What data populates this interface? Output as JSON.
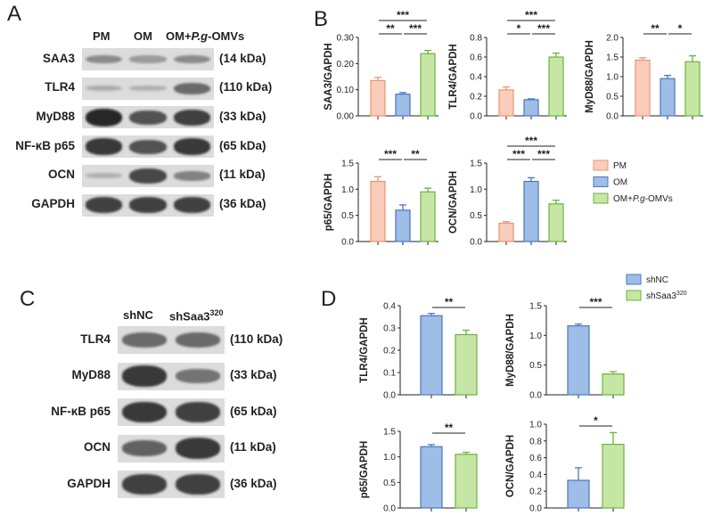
{
  "panels": {
    "a": "A",
    "b": "B",
    "c": "C",
    "d": "D"
  },
  "blot_a": {
    "lanes": [
      {
        "text": "PM"
      },
      {
        "text": "OM"
      },
      {
        "text": "OM+",
        "em": "P.g",
        "tail": "-OMVs"
      }
    ],
    "rows": [
      {
        "label": "SAA3",
        "kda": "(14 kDa)",
        "intensity": [
          0.35,
          0.25,
          0.35
        ]
      },
      {
        "label": "TLR4",
        "kda": "(110 kDa)",
        "intensity": [
          0.15,
          0.12,
          0.55
        ]
      },
      {
        "label": "MyD88",
        "kda": "(33 kDa)",
        "intensity": [
          0.95,
          0.7,
          0.8
        ]
      },
      {
        "label": "NF-κB p65",
        "kda": "(65 kDa)",
        "intensity": [
          0.85,
          0.7,
          0.85
        ]
      },
      {
        "label": "OCN",
        "kda": "(11 kDa)",
        "intensity": [
          0.12,
          0.75,
          0.4
        ]
      },
      {
        "label": "GAPDH",
        "kda": "(36 kDa)",
        "intensity": [
          0.8,
          0.8,
          0.8
        ]
      }
    ]
  },
  "blot_c": {
    "lanes": [
      {
        "text": "shNC"
      },
      {
        "text": "shSaa3",
        "sup": "320"
      }
    ],
    "rows": [
      {
        "label": "TLR4",
        "kda": "(110 kDa)",
        "intensity": [
          0.55,
          0.55
        ]
      },
      {
        "label": "MyD88",
        "kda": "(33 kDa)",
        "intensity": [
          0.85,
          0.5
        ]
      },
      {
        "label": "NF-κB p65",
        "kda": "(65 kDa)",
        "intensity": [
          0.85,
          0.8
        ]
      },
      {
        "label": "OCN",
        "kda": "(11 kDa)",
        "intensity": [
          0.6,
          0.85
        ]
      },
      {
        "label": "GAPDH",
        "kda": "(36 kDa)",
        "intensity": [
          0.8,
          0.8
        ]
      }
    ]
  },
  "legend_b": [
    {
      "text": "PM",
      "color": "#f9cdb9",
      "edge": "#e99572"
    },
    {
      "text": "OM",
      "color": "#9ebde7",
      "edge": "#4a77c2"
    },
    {
      "text": "OM+",
      "em": "P.g",
      "tail": "-OMVs",
      "color": "#c6e6a6",
      "edge": "#6bb33e"
    }
  ],
  "legend_d": [
    {
      "text": "shNC",
      "sup": "",
      "color": "#9ebde7",
      "edge": "#4a77c2"
    },
    {
      "text": "shSaa3",
      "sup": "320",
      "color": "#c6e6a6",
      "edge": "#6bb33e"
    }
  ],
  "chart_data": [
    {
      "type": "bar",
      "panel": "B",
      "ylabel": "SAA3/GAPDH",
      "categories": [
        "PM",
        "OM",
        "OM+P.g-OMVs"
      ],
      "values": [
        0.135,
        0.083,
        0.238
      ],
      "errors": [
        0.012,
        0.006,
        0.012
      ],
      "ylim": [
        0,
        0.3
      ],
      "yticks": [
        "0.00",
        "0.10",
        "0.20",
        "0.30"
      ],
      "ytick_values": [
        0,
        0.1,
        0.2,
        0.3
      ],
      "significance": [
        {
          "from": 0,
          "to": 1,
          "label": "**"
        },
        {
          "from": 1,
          "to": 2,
          "label": "***"
        },
        {
          "from": 0,
          "to": 2,
          "label": "***"
        }
      ]
    },
    {
      "type": "bar",
      "panel": "B",
      "ylabel": "TLR4/GAPDH",
      "categories": [
        "PM",
        "OM",
        "OM+P.g-OMVs"
      ],
      "values": [
        0.265,
        0.165,
        0.6
      ],
      "errors": [
        0.03,
        0.008,
        0.04
      ],
      "ylim": [
        0,
        0.8
      ],
      "yticks": [
        "0.0",
        "0.2",
        "0.4",
        "0.6",
        "0.8"
      ],
      "ytick_values": [
        0,
        0.2,
        0.4,
        0.6,
        0.8
      ],
      "significance": [
        {
          "from": 0,
          "to": 1,
          "label": "*"
        },
        {
          "from": 1,
          "to": 2,
          "label": "***"
        },
        {
          "from": 0,
          "to": 2,
          "label": "***"
        }
      ]
    },
    {
      "type": "bar",
      "panel": "B",
      "ylabel": "MyD88/GAPDH",
      "categories": [
        "PM",
        "OM",
        "OM+P.g-OMVs"
      ],
      "values": [
        1.42,
        0.95,
        1.38
      ],
      "errors": [
        0.06,
        0.08,
        0.15
      ],
      "ylim": [
        0,
        2.0
      ],
      "yticks": [
        "0.0",
        "0.5",
        "1.0",
        "1.5",
        "2.0"
      ],
      "ytick_values": [
        0,
        0.5,
        1.0,
        1.5,
        2.0
      ],
      "significance": [
        {
          "from": 0,
          "to": 1,
          "label": "**"
        },
        {
          "from": 1,
          "to": 2,
          "label": "*"
        }
      ]
    },
    {
      "type": "bar",
      "panel": "B",
      "ylabel": "p65/GAPDH",
      "categories": [
        "PM",
        "OM",
        "OM+P.g-OMVs"
      ],
      "values": [
        1.15,
        0.6,
        0.95
      ],
      "errors": [
        0.09,
        0.1,
        0.07
      ],
      "ylim": [
        0,
        1.5
      ],
      "yticks": [
        "0.0",
        "0.5",
        "1.0",
        "1.5"
      ],
      "ytick_values": [
        0,
        0.5,
        1.0,
        1.5
      ],
      "significance": [
        {
          "from": 0,
          "to": 1,
          "label": "***"
        },
        {
          "from": 1,
          "to": 2,
          "label": "**"
        }
      ]
    },
    {
      "type": "bar",
      "panel": "B",
      "ylabel": "OCN/GAPDH",
      "categories": [
        "PM",
        "OM",
        "OM+P.g-OMVs"
      ],
      "values": [
        0.35,
        1.15,
        0.72
      ],
      "errors": [
        0.03,
        0.07,
        0.07
      ],
      "ylim": [
        0,
        1.5
      ],
      "yticks": [
        "0.0",
        "0.5",
        "1.0",
        "1.5"
      ],
      "ytick_values": [
        0,
        0.5,
        1.0,
        1.5
      ],
      "significance": [
        {
          "from": 0,
          "to": 1,
          "label": "***"
        },
        {
          "from": 1,
          "to": 2,
          "label": "***"
        },
        {
          "from": 0,
          "to": 2,
          "label": "***"
        }
      ]
    },
    {
      "type": "bar",
      "panel": "D",
      "ylabel": "TLR4/GAPDH",
      "categories": [
        "shNC",
        "shSaa3 320"
      ],
      "values": [
        0.355,
        0.27
      ],
      "errors": [
        0.01,
        0.02
      ],
      "ylim": [
        0,
        0.4
      ],
      "yticks": [
        "0.0",
        "0.1",
        "0.2",
        "0.3",
        "0.4"
      ],
      "ytick_values": [
        0,
        0.1,
        0.2,
        0.3,
        0.4
      ],
      "significance": [
        {
          "from": 0,
          "to": 1,
          "label": "**"
        }
      ]
    },
    {
      "type": "bar",
      "panel": "D",
      "ylabel": "MyD88/GAPDH",
      "categories": [
        "shNC",
        "shSaa3 320"
      ],
      "values": [
        1.16,
        0.35
      ],
      "errors": [
        0.03,
        0.04
      ],
      "ylim": [
        0,
        1.5
      ],
      "yticks": [
        "0.0",
        "0.5",
        "1.0",
        "1.5"
      ],
      "ytick_values": [
        0,
        0.5,
        1.0,
        1.5
      ],
      "significance": [
        {
          "from": 0,
          "to": 1,
          "label": "***"
        }
      ]
    },
    {
      "type": "bar",
      "panel": "D",
      "ylabel": "p65/GAPDH",
      "categories": [
        "shNC",
        "shSaa3 320"
      ],
      "values": [
        1.2,
        1.05
      ],
      "errors": [
        0.04,
        0.04
      ],
      "ylim": [
        0,
        1.5
      ],
      "yticks": [
        "0.0",
        "0.5",
        "1.0",
        "1.5"
      ],
      "ytick_values": [
        0,
        0.5,
        1.0,
        1.5
      ],
      "significance": [
        {
          "from": 0,
          "to": 1,
          "label": "**"
        }
      ]
    },
    {
      "type": "bar",
      "panel": "D",
      "ylabel": "OCN/GAPDH",
      "categories": [
        "shNC",
        "shSaa3 320"
      ],
      "values": [
        0.33,
        0.76
      ],
      "errors": [
        0.15,
        0.14
      ],
      "ylim": [
        0,
        1.0
      ],
      "yticks": [
        "0.0",
        "0.2",
        "0.4",
        "0.6",
        "0.8",
        "1.0"
      ],
      "ytick_values": [
        0,
        0.2,
        0.4,
        0.6,
        0.8,
        1.0
      ],
      "significance": [
        {
          "from": 0,
          "to": 1,
          "label": "*"
        }
      ]
    }
  ]
}
